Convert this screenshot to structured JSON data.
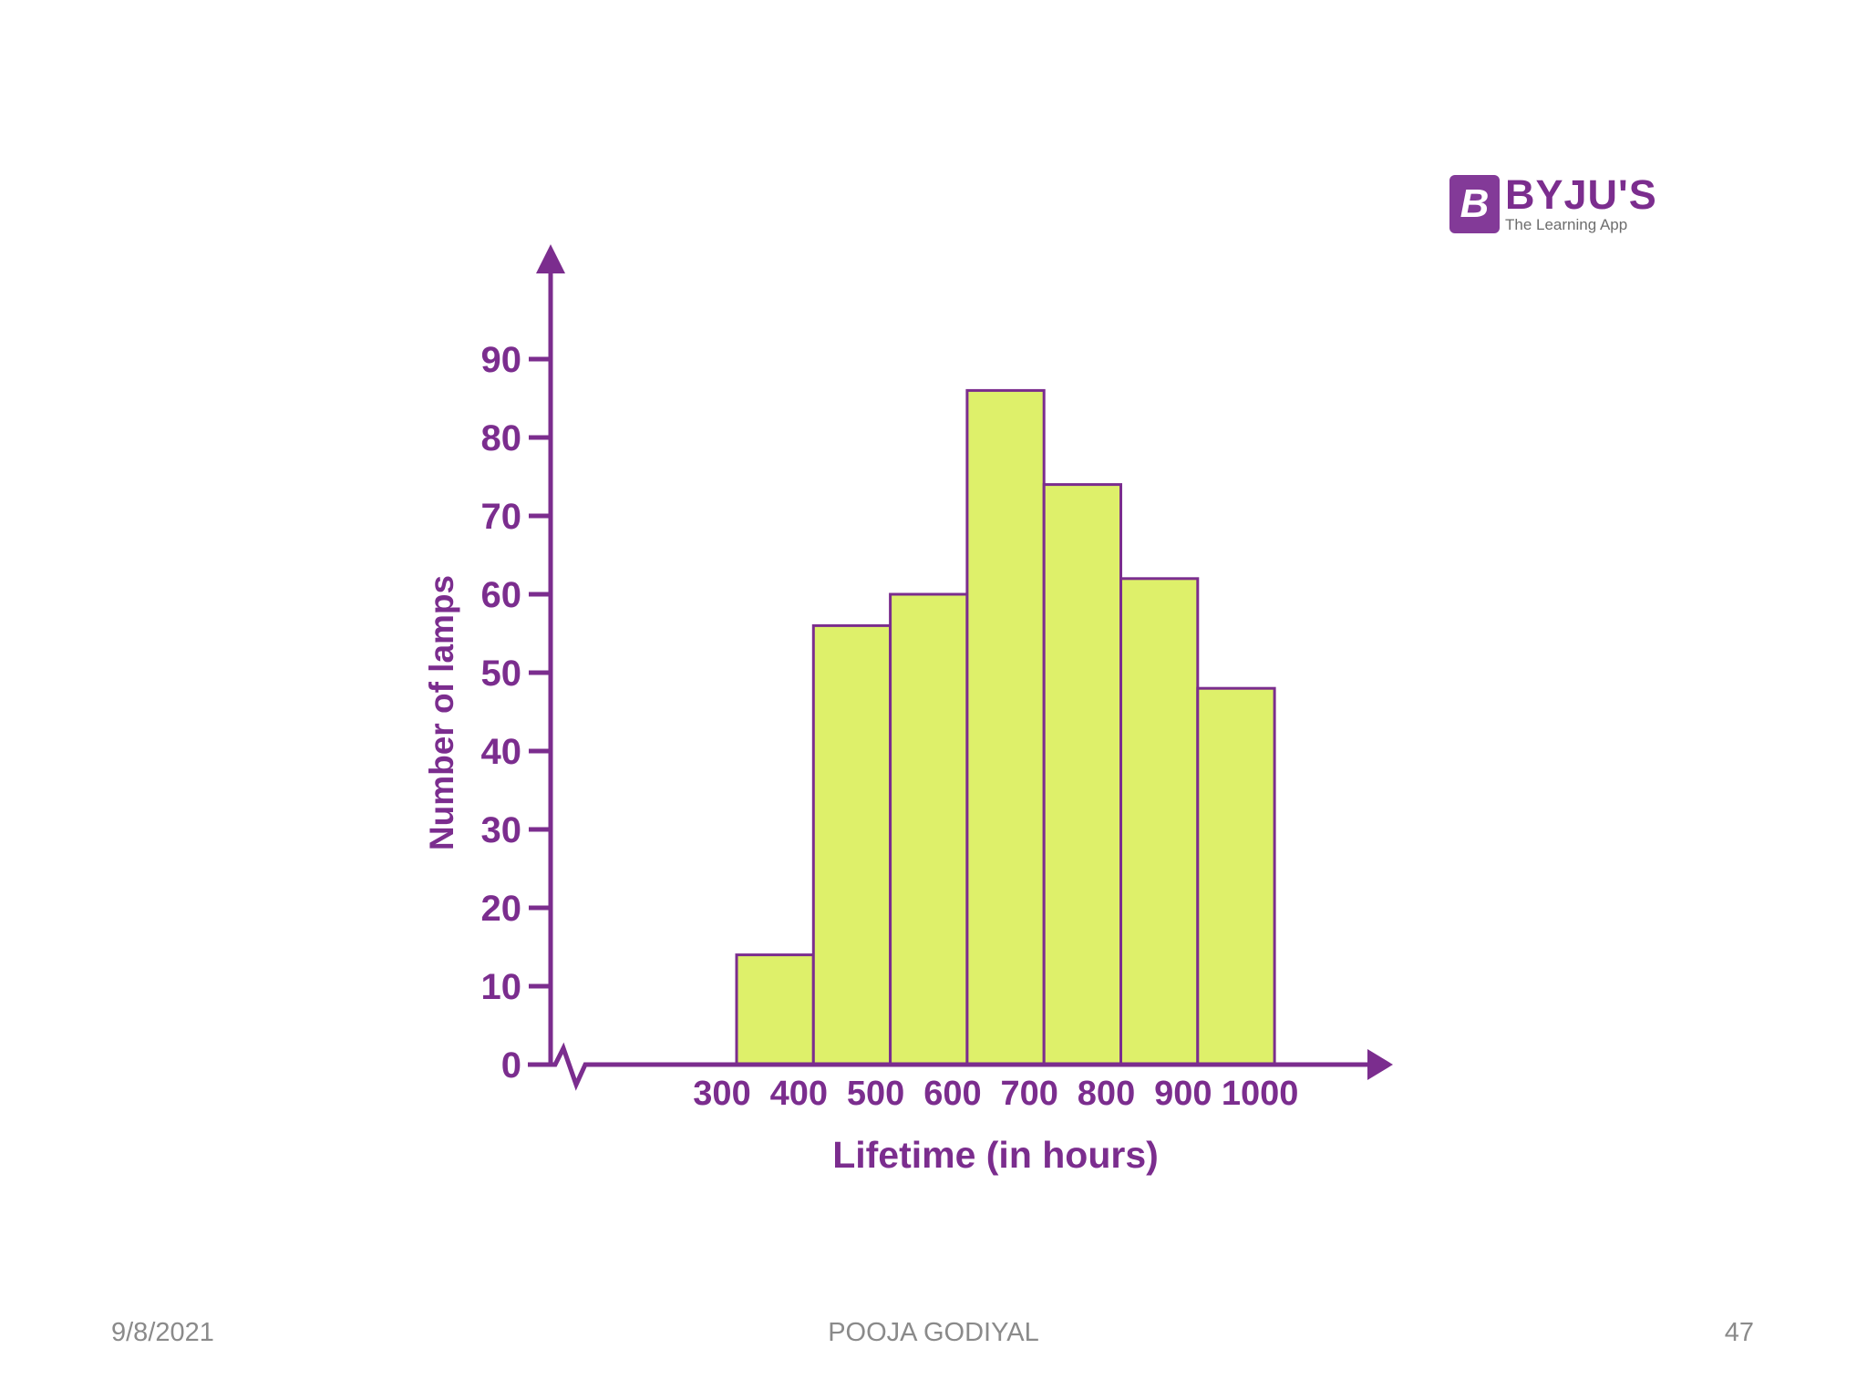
{
  "chart_data": {
    "type": "bar",
    "subtype": "histogram",
    "bin_edges": [
      300,
      400,
      500,
      600,
      700,
      800,
      900,
      1000
    ],
    "values": [
      14,
      56,
      60,
      86,
      74,
      62,
      48
    ],
    "x_tick_labels": [
      "300",
      "400",
      "500",
      "600",
      "700",
      "800",
      "900",
      "1000"
    ],
    "y_tick_labels": [
      "0",
      "10",
      "20",
      "30",
      "40",
      "50",
      "60",
      "70",
      "80",
      "90"
    ],
    "y_ticks": [
      0,
      10,
      20,
      30,
      40,
      50,
      60,
      70,
      80,
      90
    ],
    "xlabel": "Lifetime (in hours)",
    "ylabel": "Number of lamps",
    "ylim": [
      0,
      90
    ],
    "x_axis_break": true,
    "grid": false,
    "colors": {
      "bar_fill": "#def06a",
      "bar_stroke": "#7b2d8e",
      "axis": "#7b2d8e",
      "text": "#7b2d8e"
    }
  },
  "logo": {
    "badge_letter": "B",
    "name": "BYJU'S",
    "tagline": "The Learning App"
  },
  "footer": {
    "date": "9/8/2021",
    "author": "POOJA GODIYAL",
    "page": "47"
  }
}
